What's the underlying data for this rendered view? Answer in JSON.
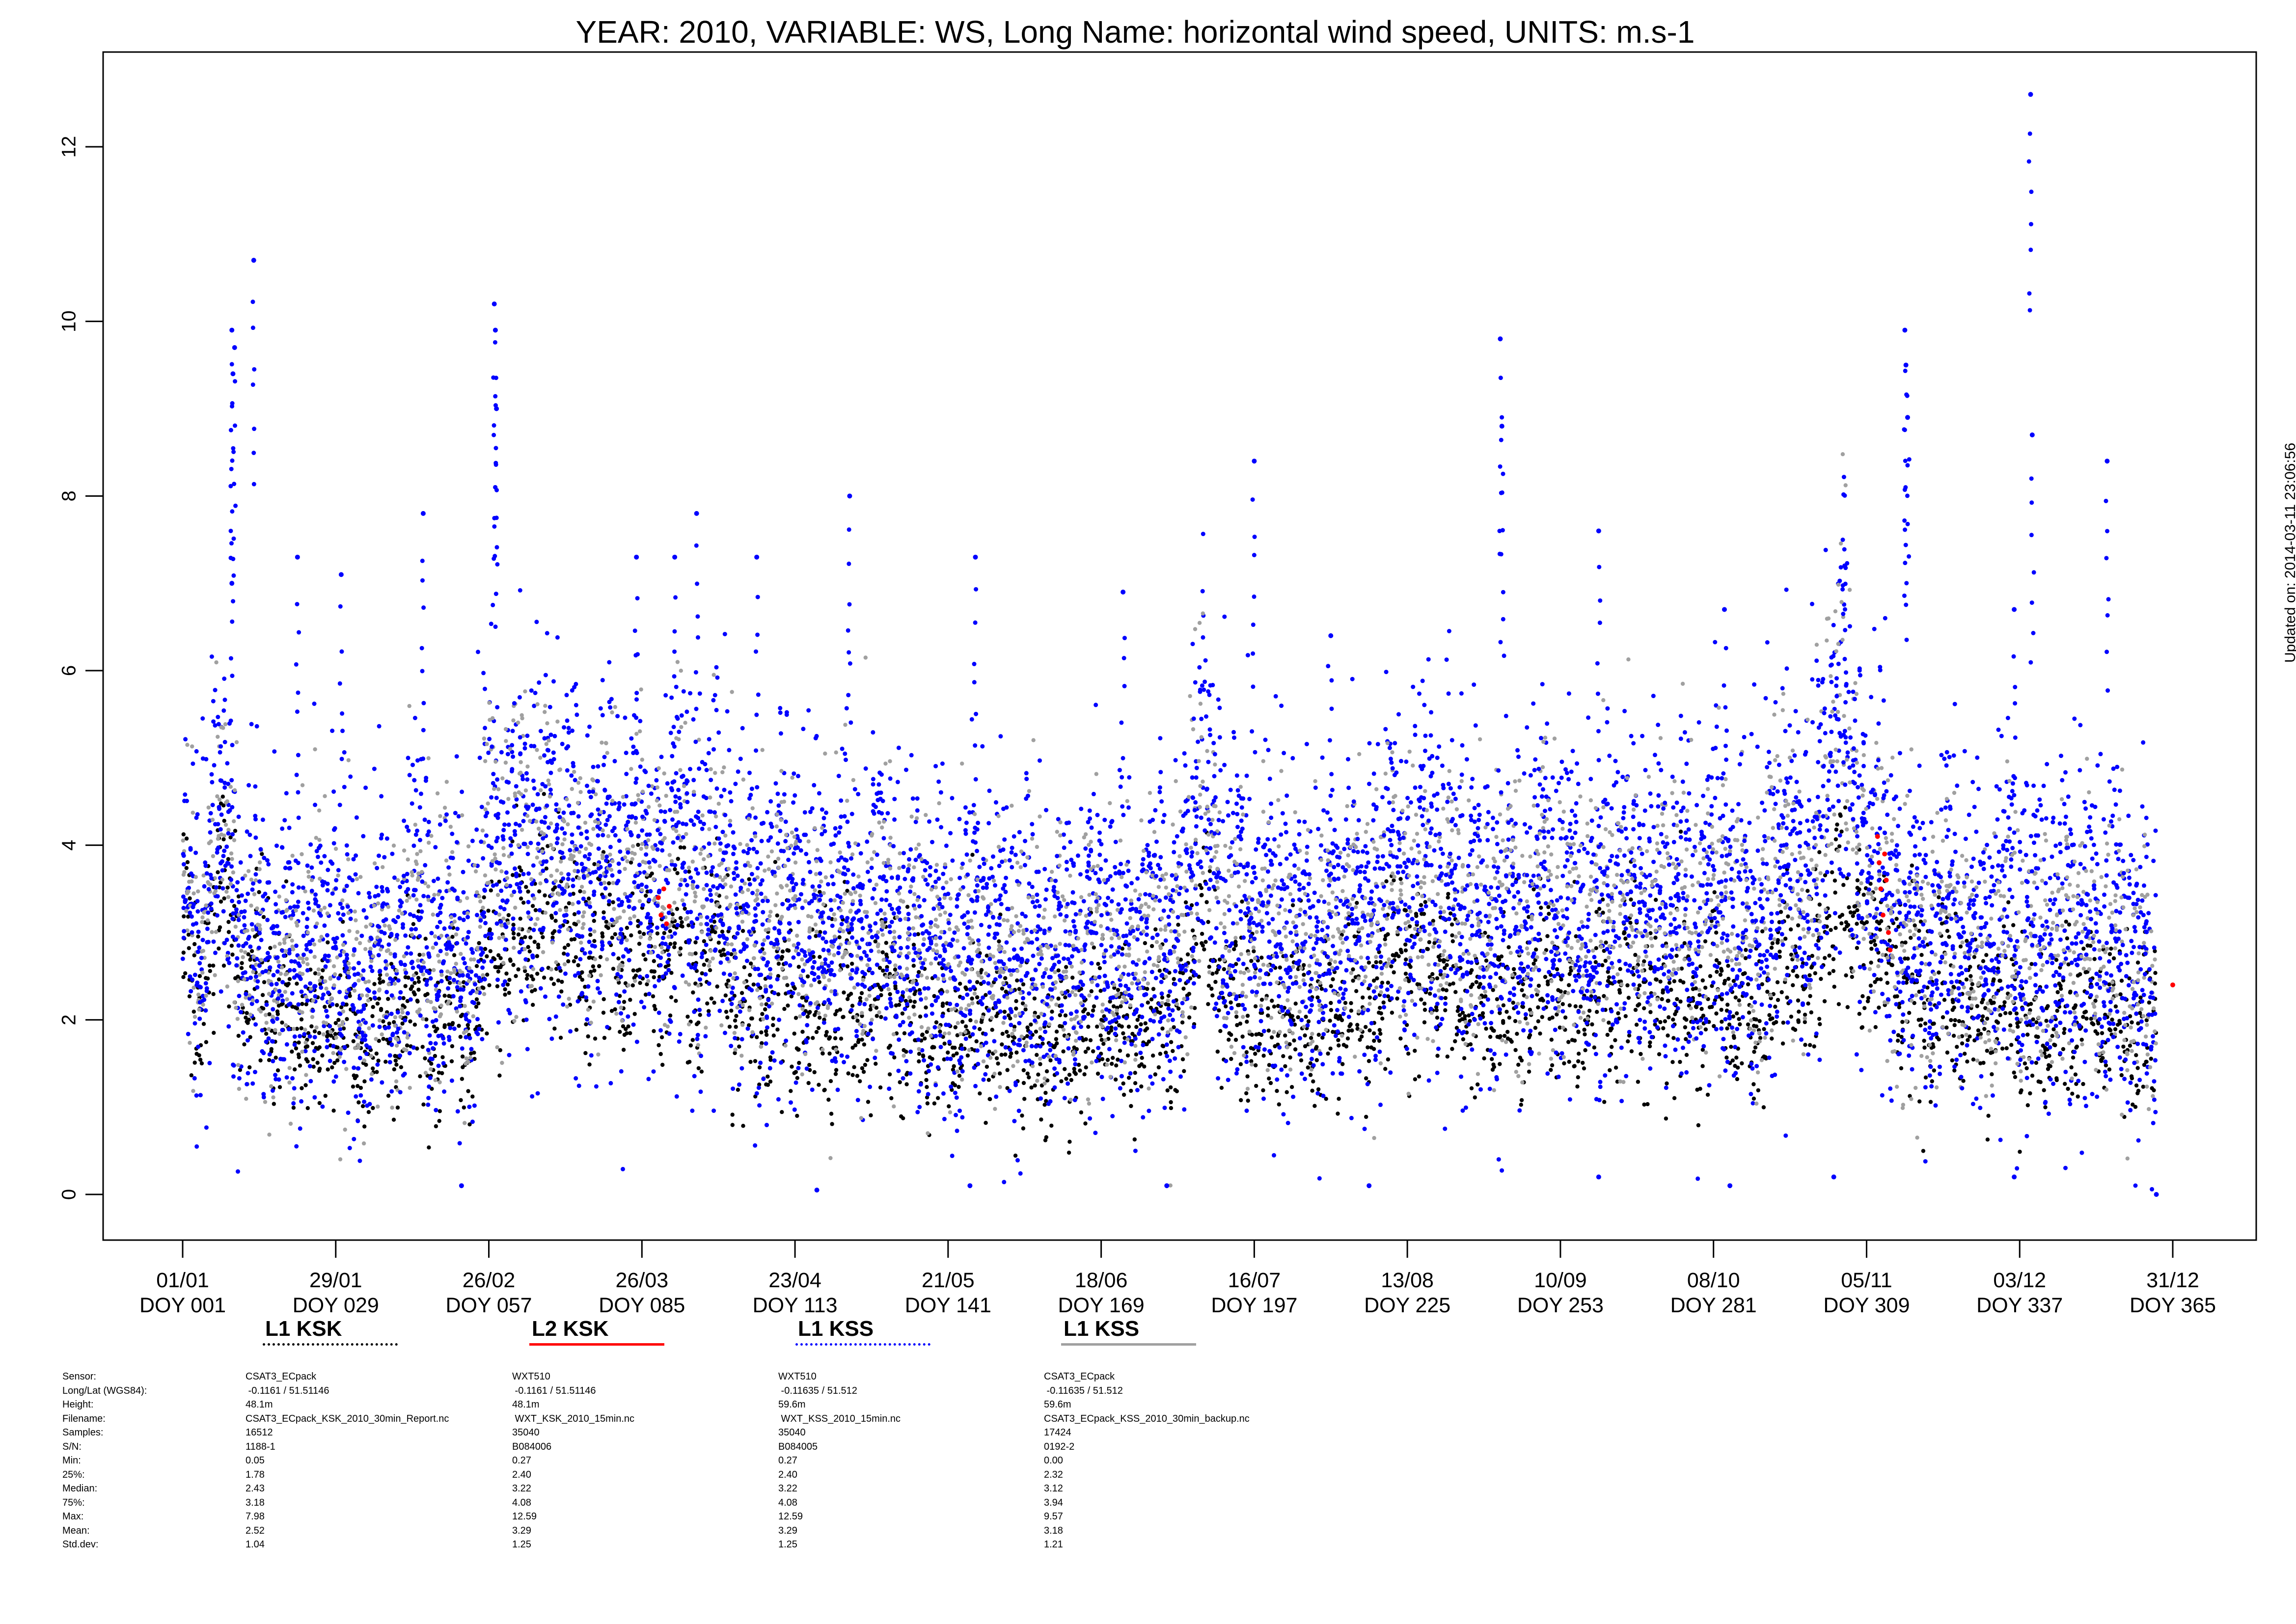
{
  "chart_data": {
    "type": "scatter",
    "title": "YEAR: 2010, VARIABLE: WS, Long Name: horizontal  wind  speed, UNITS: m.s-1",
    "xlabel": "",
    "ylabel": "",
    "xlim": [
      1,
      365
    ],
    "ylim": [
      -0.5,
      13.3
    ],
    "y_ticks": [
      0,
      2,
      4,
      6,
      8,
      10,
      12
    ],
    "x_ticks": [
      {
        "doy": 1,
        "date": "01/01",
        "label": "DOY 001"
      },
      {
        "doy": 29,
        "date": "29/01",
        "label": "DOY 029"
      },
      {
        "doy": 57,
        "date": "26/02",
        "label": "DOY 057"
      },
      {
        "doy": 85,
        "date": "26/03",
        "label": "DOY 085"
      },
      {
        "doy": 113,
        "date": "23/04",
        "label": "DOY 113"
      },
      {
        "doy": 141,
        "date": "21/05",
        "label": "DOY 141"
      },
      {
        "doy": 169,
        "date": "18/06",
        "label": "DOY 169"
      },
      {
        "doy": 197,
        "date": "16/07",
        "label": "DOY 197"
      },
      {
        "doy": 225,
        "date": "13/08",
        "label": "DOY 225"
      },
      {
        "doy": 253,
        "date": "10/09",
        "label": "DOY 253"
      },
      {
        "doy": 281,
        "date": "08/10",
        "label": "DOY 281"
      },
      {
        "doy": 309,
        "date": "05/11",
        "label": "DOY 309"
      },
      {
        "doy": 337,
        "date": "03/12",
        "label": "DOY 337"
      },
      {
        "doy": 365,
        "date": "31/12",
        "label": "DOY 365"
      }
    ],
    "grid": false,
    "legend_placement": "bottom",
    "series": [
      {
        "name": "L1 KSK",
        "color": "#000000",
        "line_style": "dotted",
        "daily_mean": [
          3.1,
          2.8,
          2.4,
          2.2,
          2.6,
          3.0,
          3.4,
          3.8,
          3.5,
          2.9,
          2.4,
          2.2,
          2.5,
          2.8,
          2.3,
          2.0,
          1.8,
          2.1,
          2.4,
          2.2,
          1.9,
          1.7,
          1.8,
          2.0,
          2.3,
          2.1,
          1.9,
          1.8,
          1.7,
          2.0,
          2.2,
          1.9,
          1.6,
          1.5,
          1.8,
          2.1,
          2.4,
          2.0,
          1.8,
          1.6,
          1.9,
          2.2,
          2.5,
          2.3,
          2.0,
          1.7,
          1.5,
          1.8,
          2.1,
          2.3,
          2.0,
          1.8,
          1.7,
          2.0,
          2.4,
          2.8,
          3.0,
          2.7,
          2.5,
          2.8,
          3.1,
          3.3,
          3.0,
          2.8,
          3.0,
          3.2,
          3.5,
          3.2,
          2.9,
          2.7,
          2.9,
          3.1,
          2.8,
          2.6,
          2.5,
          2.7,
          2.9,
          3.1,
          2.8,
          2.5,
          2.3,
          2.5,
          2.7,
          2.9,
          3.0,
          2.8,
          2.6,
          2.4,
          2.6,
          2.9,
          3.2,
          3.0,
          2.7,
          2.4,
          2.2,
          2.4,
          2.7,
          3.0,
          2.8,
          2.5,
          2.2,
          2.0,
          2.3,
          2.5,
          2.2,
          2.0,
          1.8,
          2.0,
          2.3,
          2.6,
          2.4,
          2.1,
          1.9,
          1.8,
          2.0,
          2.3,
          2.1,
          1.9,
          1.7,
          1.9,
          2.2,
          2.4,
          2.2,
          2.0,
          1.8,
          1.9,
          2.1,
          2.4,
          2.6,
          2.3,
          2.0,
          1.8,
          1.9,
          2.2,
          2.0,
          1.8,
          1.6,
          1.8,
          2.0,
          1.8,
          1.6,
          1.5,
          1.7,
          2.0,
          2.3,
          2.1,
          1.9,
          1.7,
          1.9,
          2.1,
          1.9,
          1.7,
          1.6,
          1.8,
          2.1,
          1.9,
          1.7,
          1.5,
          1.7,
          1.9,
          2.1,
          1.9,
          1.7,
          1.6,
          1.8,
          2.0,
          2.2,
          2.0,
          1.8,
          1.7,
          1.9,
          2.1,
          1.9,
          1.8,
          1.7,
          1.9,
          2.1,
          2.3,
          2.1,
          1.9,
          1.8,
          2.0,
          2.2,
          2.4,
          2.6,
          2.9,
          3.3,
          3.0,
          2.7,
          2.4,
          2.2,
          2.0,
          2.2,
          2.4,
          2.2,
          2.0,
          1.9,
          2.1,
          2.3,
          2.1,
          1.9,
          1.8,
          2.0,
          2.2,
          2.0,
          1.8,
          1.7,
          1.9,
          2.1,
          2.3,
          2.1,
          1.9,
          2.1,
          2.3,
          2.5,
          2.3,
          2.1,
          2.0,
          2.2,
          2.4,
          2.6,
          2.8,
          2.6,
          2.4,
          2.3,
          2.5,
          2.7,
          2.5,
          2.3,
          2.2,
          2.4,
          2.6,
          2.4,
          2.2,
          2.0,
          2.2,
          2.4,
          2.2,
          2.0,
          1.9,
          2.1,
          2.3,
          2.5,
          2.3,
          2.1,
          2.0,
          2.2,
          2.4,
          2.6,
          2.4,
          2.2,
          2.0,
          2.2,
          2.4,
          2.2,
          2.0,
          1.9,
          2.1,
          2.3,
          2.5,
          2.3,
          2.1,
          2.3,
          2.5,
          2.7,
          2.5,
          2.3,
          2.1,
          2.3,
          2.5,
          2.3,
          2.1,
          2.0,
          2.2,
          2.4,
          2.2,
          2.0,
          1.9,
          2.1,
          2.3,
          2.5,
          2.3,
          2.1,
          1.9,
          2.1,
          2.3,
          2.1,
          1.9,
          1.8,
          2.0,
          2.2,
          2.4,
          2.6,
          2.8,
          2.6,
          2.4,
          2.2,
          2.4,
          2.6,
          2.8,
          3.0,
          3.2,
          3.5,
          3.8,
          3.6,
          3.3,
          3.0,
          2.8,
          2.6,
          2.8,
          3.0,
          2.7,
          2.4,
          2.2,
          2.0,
          2.2,
          2.4,
          2.2,
          2.0,
          1.9,
          2.1,
          2.3,
          2.5,
          2.3,
          2.1,
          1.9,
          2.1,
          2.3,
          2.1,
          1.9,
          1.8,
          2.0,
          2.2,
          2.4,
          2.2,
          2.0,
          1.8,
          2.0,
          2.2,
          2.0,
          1.8,
          1.7,
          1.9,
          2.1,
          2.3,
          2.1,
          1.9,
          2.1,
          2.3,
          2.1,
          1.9,
          1.8,
          2.0,
          2.2,
          2.0,
          1.8,
          1.7,
          1.9,
          2.1,
          2.0,
          1.9
        ]
      },
      {
        "name": "L2 KSK",
        "color": "#ff0000",
        "line_style": "solid",
        "points": [
          [
            88,
            3.4
          ],
          [
            88.5,
            3.2
          ],
          [
            89,
            3.5
          ],
          [
            89.5,
            3.1
          ],
          [
            90,
            3.3
          ],
          [
            311,
            4.1
          ],
          [
            311.3,
            3.8
          ],
          [
            311.6,
            3.5
          ],
          [
            312,
            3.2
          ],
          [
            312.3,
            3.9
          ],
          [
            312.6,
            3.6
          ],
          [
            313,
            3.0
          ],
          [
            313.3,
            2.8
          ],
          [
            365,
            2.4
          ]
        ]
      },
      {
        "name": "L1 KSS",
        "color": "#0000ff",
        "line_style": "dotted",
        "daily_mean": [
          3.6,
          3.2,
          2.9,
          3.0,
          3.6,
          4.1,
          4.5,
          4.2,
          3.7,
          3.2,
          2.8,
          2.6,
          2.9,
          3.3,
          2.9,
          2.6,
          2.4,
          2.7,
          3.0,
          2.8,
          2.6,
          2.5,
          2.7,
          2.9,
          3.1,
          2.9,
          2.7,
          2.6,
          2.5,
          2.8,
          3.0,
          2.7,
          2.4,
          2.3,
          2.7,
          3.0,
          3.3,
          2.9,
          2.7,
          2.5,
          2.8,
          3.2,
          3.6,
          3.3,
          2.9,
          2.6,
          2.4,
          2.7,
          3.0,
          3.2,
          2.9,
          2.7,
          2.6,
          2.9,
          3.4,
          4.0,
          4.5,
          4.1,
          3.7,
          3.9,
          4.2,
          4.4,
          4.1,
          3.8,
          4.0,
          4.2,
          4.5,
          4.2,
          3.9,
          3.7,
          3.9,
          4.1,
          3.8,
          3.6,
          3.5,
          3.7,
          3.9,
          4.1,
          3.8,
          3.5,
          3.3,
          3.5,
          3.7,
          3.9,
          4.0,
          3.8,
          3.6,
          3.4,
          3.6,
          4.0,
          4.4,
          4.1,
          3.8,
          3.5,
          3.3,
          3.5,
          3.8,
          4.1,
          3.9,
          3.6,
          3.3,
          3.0,
          3.3,
          3.6,
          3.3,
          3.0,
          2.8,
          3.0,
          3.4,
          3.8,
          3.5,
          3.2,
          3.0,
          2.8,
          3.0,
          3.4,
          3.2,
          2.9,
          2.7,
          2.9,
          3.2,
          3.5,
          3.3,
          3.0,
          2.8,
          2.9,
          3.2,
          3.5,
          3.7,
          3.4,
          3.1,
          2.8,
          2.9,
          3.2,
          3.0,
          2.8,
          2.6,
          2.8,
          3.1,
          2.9,
          2.7,
          2.5,
          2.7,
          3.0,
          3.3,
          3.1,
          2.9,
          2.7,
          2.9,
          3.1,
          2.9,
          2.7,
          2.6,
          2.8,
          3.1,
          2.9,
          2.7,
          2.5,
          2.7,
          2.9,
          3.1,
          2.9,
          2.7,
          2.6,
          2.8,
          3.0,
          3.2,
          3.0,
          2.8,
          2.7,
          2.9,
          3.1,
          2.9,
          2.8,
          2.7,
          2.9,
          3.1,
          3.3,
          3.1,
          2.9,
          2.8,
          3.0,
          3.2,
          3.5,
          3.8,
          4.3,
          5.2,
          4.5,
          3.9,
          3.5,
          3.2,
          3.0,
          3.2,
          3.4,
          3.2,
          3.0,
          2.9,
          3.1,
          3.3,
          3.1,
          2.9,
          2.8,
          3.0,
          3.2,
          3.0,
          2.8,
          2.7,
          2.9,
          3.1,
          3.3,
          3.1,
          2.9,
          3.1,
          3.3,
          3.6,
          3.4,
          3.2,
          3.1,
          3.3,
          3.5,
          3.8,
          4.1,
          3.8,
          3.5,
          3.4,
          3.6,
          3.9,
          3.7,
          3.4,
          3.3,
          3.5,
          3.7,
          3.5,
          3.3,
          3.1,
          3.3,
          3.5,
          3.3,
          3.1,
          3.0,
          3.2,
          3.4,
          3.6,
          3.4,
          3.2,
          3.1,
          3.3,
          3.5,
          3.8,
          3.6,
          3.3,
          3.1,
          3.3,
          3.5,
          3.3,
          3.1,
          3.0,
          3.2,
          3.4,
          3.6,
          3.4,
          3.2,
          3.4,
          3.6,
          3.9,
          3.7,
          3.4,
          3.2,
          3.4,
          3.6,
          3.4,
          3.2,
          3.1,
          3.3,
          3.5,
          3.3,
          3.1,
          3.0,
          3.2,
          3.4,
          3.6,
          3.4,
          3.2,
          3.0,
          3.2,
          3.4,
          3.2,
          3.0,
          2.9,
          3.1,
          3.3,
          3.6,
          3.9,
          4.2,
          3.9,
          3.6,
          3.3,
          3.6,
          3.9,
          4.2,
          4.6,
          5.0,
          5.6,
          6.1,
          5.5,
          4.8,
          4.2,
          3.8,
          3.5,
          3.8,
          4.1,
          3.7,
          3.3,
          3.0,
          2.8,
          3.0,
          3.3,
          3.0,
          2.8,
          2.7,
          2.9,
          3.2,
          3.5,
          3.2,
          2.9,
          2.7,
          2.9,
          3.2,
          3.0,
          2.8,
          2.6,
          2.9,
          3.1,
          3.4,
          3.1,
          2.8,
          2.6,
          2.9,
          3.2,
          3.0,
          2.8,
          2.6,
          2.8,
          3.1,
          3.4,
          3.1,
          2.8,
          3.1,
          3.4,
          3.1,
          2.8,
          2.6,
          2.9,
          3.2,
          2.9,
          2.7,
          2.5,
          2.7,
          3.0,
          2.6,
          2.2
        ],
        "peaks": [
          [
            10,
            9.9
          ],
          [
            10.5,
            9.7
          ],
          [
            10.2,
            9.4
          ],
          [
            14,
            10.7
          ],
          [
            58,
            10.2
          ],
          [
            58.2,
            9.9
          ],
          [
            58.4,
            9.0
          ],
          [
            316,
            9.9
          ],
          [
            316.2,
            9.5
          ],
          [
            316.5,
            8.9
          ],
          [
            242,
            9.8
          ],
          [
            242.3,
            8.8
          ],
          [
            197,
            8.4
          ],
          [
            106,
            7.3
          ],
          [
            91,
            7.3
          ],
          [
            95,
            7.8
          ],
          [
            84,
            7.3
          ],
          [
            123,
            8.0
          ],
          [
            146,
            7.3
          ],
          [
            173,
            6.9
          ],
          [
            211,
            6.4
          ],
          [
            260,
            7.6
          ],
          [
            283,
            6.7
          ],
          [
            305,
            7.2
          ],
          [
            339,
            12.6
          ],
          [
            339.3,
            8.7
          ],
          [
            353,
            8.4
          ],
          [
            22,
            7.3
          ],
          [
            30,
            7.1
          ],
          [
            45,
            7.8
          ],
          [
            10,
            7.0
          ],
          [
            336,
            6.7
          ]
        ],
        "lows": [
          [
            52,
            0.1
          ],
          [
            117,
            0.05
          ],
          [
            145,
            0.1
          ],
          [
            181,
            0.1
          ],
          [
            218,
            0.1
          ],
          [
            260,
            0.2
          ],
          [
            284,
            0.1
          ],
          [
            303,
            0.2
          ],
          [
            336,
            0.2
          ],
          [
            362,
            0.0
          ]
        ]
      },
      {
        "name": "L1 KSS",
        "color": "#a0a0a0",
        "line_style": "solid"
      }
    ]
  },
  "legend": [
    {
      "label": "L1 KSK",
      "color": "#000000",
      "style": "dotted"
    },
    {
      "label": "L2 KSK",
      "color": "#ff0000",
      "style": "solid"
    },
    {
      "label": "L1 KSS",
      "color": "#0000ff",
      "style": "dotted"
    },
    {
      "label": "L1 KSS",
      "color": "#a0a0a0",
      "style": "solid"
    }
  ],
  "metadata": {
    "row_labels": [
      "Sensor:",
      "Long/Lat (WGS84):",
      "Height:",
      "Filename:",
      "Samples:",
      "S/N:",
      "Min:",
      "25%:",
      "Median:",
      "75%:",
      "Max:",
      "Mean:",
      "Std.dev:"
    ],
    "columns": [
      [
        "CSAT3_ECpack",
        " -0.1161 / 51.51146",
        "48.1m",
        "CSAT3_ECpack_KSK_2010_30min_Report.nc",
        "16512",
        "1188-1",
        "0.05",
        "1.78",
        "2.43",
        "3.18",
        "7.98",
        "2.52",
        "1.04"
      ],
      [
        "WXT510",
        " -0.1161 / 51.51146",
        "48.1m",
        " WXT_KSK_2010_15min.nc",
        "35040",
        "B084006",
        "0.27",
        "2.40",
        "3.22",
        "4.08",
        "12.59",
        "3.29",
        "1.25"
      ],
      [
        "WXT510",
        " -0.11635 / 51.512",
        "59.6m",
        " WXT_KSS_2010_15min.nc",
        "35040",
        "B084005",
        "0.27",
        "2.40",
        "3.22",
        "4.08",
        "12.59",
        "3.29",
        "1.25"
      ],
      [
        "CSAT3_ECpack",
        " -0.11635 / 51.512",
        "59.6m",
        "CSAT3_ECpack_KSS_2010_30min_backup.nc",
        "17424",
        "0192-2",
        "0.00",
        "2.32",
        "3.12",
        "3.94",
        "9.57",
        "3.18",
        "1.21"
      ]
    ]
  },
  "updated_text": "Updated on: 2014-03-11 23:06:56"
}
